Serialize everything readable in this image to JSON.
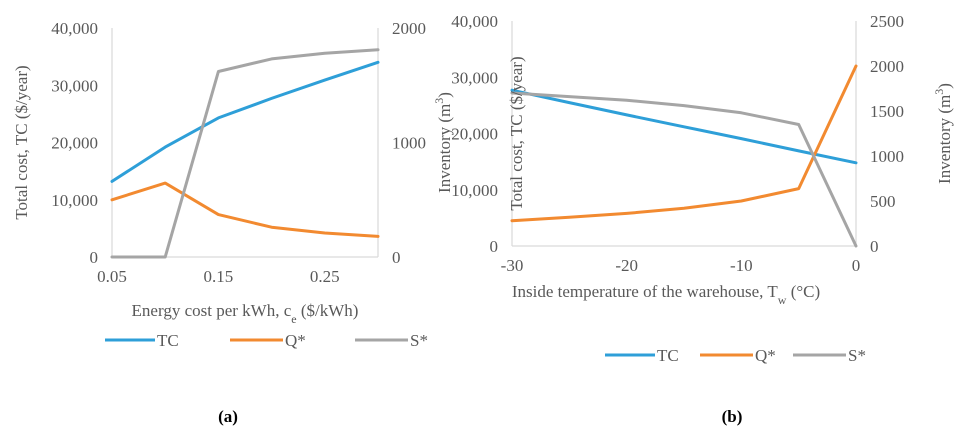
{
  "chart_data": [
    {
      "id": "a",
      "type": "line",
      "panel_label": "(a)",
      "xlabel": "Energy cost per kWh, c",
      "xlabel_sub": "e",
      "xlabel_suffix": " ($/kWh)",
      "ylabel": "Total cost, TC ($/year)",
      "y2label": "Inventory (m",
      "y2label_sup": "3",
      "y2label_suffix": ")",
      "x": [
        0.05,
        0.1,
        0.15,
        0.2,
        0.25,
        0.3
      ],
      "x_ticks": [
        "0.05",
        "0.15",
        "0.25"
      ],
      "xlim": [
        0.05,
        0.3
      ],
      "ylim": [
        0,
        40000
      ],
      "y_ticks": [
        "0",
        "10,000",
        "20,000",
        "30,000",
        "40,000"
      ],
      "y2lim": [
        0,
        2000
      ],
      "y2_ticks": [
        "0",
        "1000",
        "2000"
      ],
      "legend_position": "bottom",
      "series": [
        {
          "name": "TC",
          "axis": "left",
          "color": "#2e9fd8",
          "values": [
            13200,
            19200,
            24300,
            27700,
            30900,
            34000
          ]
        },
        {
          "name": "Q*",
          "axis": "left",
          "color": "#f28a30",
          "values": [
            10000,
            12900,
            7400,
            5200,
            4200,
            3600
          ]
        },
        {
          "name": "S*",
          "axis": "right",
          "color": "#a5a5a5",
          "values": [
            0,
            0,
            1620,
            1730,
            1780,
            1810
          ]
        }
      ]
    },
    {
      "id": "b",
      "type": "line",
      "panel_label": "(b)",
      "xlabel": "Inside temperature of the warehouse, T",
      "xlabel_sub": "w",
      "xlabel_suffix": " (°C)",
      "ylabel": "Total cost, TC ($/year)",
      "y2label": "Inventory (m",
      "y2label_sup": "3",
      "y2label_suffix": ")",
      "x": [
        -30,
        -25,
        -20,
        -15,
        -10,
        -5,
        0
      ],
      "x_ticks": [
        "-30",
        "-20",
        "-10",
        "0"
      ],
      "xlim": [
        -30,
        0
      ],
      "ylim": [
        0,
        40000
      ],
      "y_ticks": [
        "0",
        "10,000",
        "20,000",
        "30,000",
        "40,000"
      ],
      "y2lim": [
        0,
        2500
      ],
      "y2_ticks": [
        "0",
        "500",
        "1000",
        "1500",
        "2000",
        "2500"
      ],
      "legend_position": "bottom",
      "series": [
        {
          "name": "TC",
          "axis": "left",
          "color": "#2e9fd8",
          "values": [
            27700,
            25500,
            23300,
            21200,
            19100,
            16900,
            14800
          ]
        },
        {
          "name": "Q*",
          "axis": "left",
          "color": "#f28a30",
          "values": [
            4500,
            5100,
            5800,
            6700,
            8000,
            10200,
            32000
          ]
        },
        {
          "name": "S*",
          "axis": "right",
          "color": "#a5a5a5",
          "values": [
            1700,
            1660,
            1620,
            1560,
            1480,
            1350,
            0
          ]
        }
      ]
    }
  ]
}
